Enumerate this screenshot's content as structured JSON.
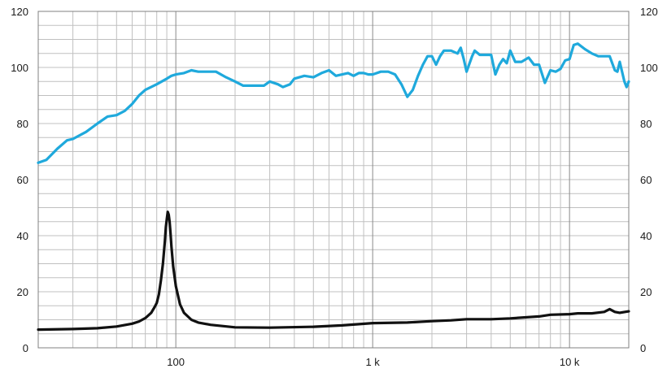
{
  "chart_data": {
    "type": "line",
    "title": "",
    "xlabel": "",
    "ylabel": "",
    "xscale": "log",
    "xlim": [
      20,
      20000
    ],
    "ylim": [
      0,
      120
    ],
    "grid": "on",
    "x_tick_labels": [
      {
        "value": 100,
        "label": "100"
      },
      {
        "value": 1000,
        "label": "1 k"
      },
      {
        "value": 10000,
        "label": "10 k"
      }
    ],
    "y_ticks": [
      0,
      20,
      40,
      60,
      80,
      100,
      120
    ],
    "series": [
      {
        "color": "#1fa9dc",
        "points": [
          [
            20,
            66
          ],
          [
            22,
            67
          ],
          [
            25,
            71
          ],
          [
            28,
            74
          ],
          [
            30,
            74.5
          ],
          [
            35,
            77
          ],
          [
            40,
            80
          ],
          [
            45,
            82.5
          ],
          [
            50,
            83
          ],
          [
            55,
            84.5
          ],
          [
            60,
            87
          ],
          [
            65,
            90
          ],
          [
            70,
            92
          ],
          [
            80,
            94
          ],
          [
            90,
            96
          ],
          [
            95,
            97
          ],
          [
            100,
            97.5
          ],
          [
            110,
            98
          ],
          [
            120,
            99
          ],
          [
            130,
            98.5
          ],
          [
            140,
            98.5
          ],
          [
            150,
            98.5
          ],
          [
            160,
            98.5
          ],
          [
            180,
            96.5
          ],
          [
            200,
            95
          ],
          [
            220,
            93.5
          ],
          [
            250,
            93.5
          ],
          [
            280,
            93.5
          ],
          [
            300,
            95
          ],
          [
            330,
            94
          ],
          [
            350,
            93
          ],
          [
            380,
            94
          ],
          [
            400,
            96
          ],
          [
            450,
            97
          ],
          [
            500,
            96.5
          ],
          [
            550,
            98
          ],
          [
            600,
            99
          ],
          [
            650,
            97
          ],
          [
            700,
            97.5
          ],
          [
            750,
            98
          ],
          [
            800,
            97
          ],
          [
            850,
            98
          ],
          [
            900,
            98
          ],
          [
            950,
            97.5
          ],
          [
            1000,
            97.5
          ],
          [
            1100,
            98.5
          ],
          [
            1200,
            98.5
          ],
          [
            1300,
            97.5
          ],
          [
            1400,
            94
          ],
          [
            1500,
            89.5
          ],
          [
            1600,
            92
          ],
          [
            1700,
            97
          ],
          [
            1800,
            101
          ],
          [
            1900,
            104
          ],
          [
            2000,
            104
          ],
          [
            2100,
            101
          ],
          [
            2200,
            104
          ],
          [
            2300,
            106
          ],
          [
            2500,
            106
          ],
          [
            2700,
            105
          ],
          [
            2800,
            107
          ],
          [
            2900,
            103
          ],
          [
            3000,
            98.5
          ],
          [
            3200,
            104
          ],
          [
            3300,
            106
          ],
          [
            3500,
            104.5
          ],
          [
            4000,
            104.5
          ],
          [
            4200,
            97.5
          ],
          [
            4400,
            101
          ],
          [
            4600,
            103
          ],
          [
            4800,
            101.5
          ],
          [
            5000,
            106
          ],
          [
            5300,
            102
          ],
          [
            5700,
            102
          ],
          [
            6200,
            103.5
          ],
          [
            6600,
            101
          ],
          [
            7000,
            101
          ],
          [
            7500,
            94.5
          ],
          [
            8000,
            99
          ],
          [
            8500,
            98.5
          ],
          [
            9000,
            99.5
          ],
          [
            9500,
            102.5
          ],
          [
            10000,
            103
          ],
          [
            10500,
            108
          ],
          [
            11000,
            108.5
          ],
          [
            12000,
            106.5
          ],
          [
            13000,
            105
          ],
          [
            14000,
            104
          ],
          [
            15000,
            104
          ],
          [
            16000,
            104
          ],
          [
            17000,
            99
          ],
          [
            17500,
            98.5
          ],
          [
            18000,
            102
          ],
          [
            19000,
            95
          ],
          [
            19500,
            93
          ],
          [
            20000,
            95
          ]
        ]
      },
      {
        "color": "#111111",
        "points": [
          [
            20,
            6.5
          ],
          [
            30,
            6.7
          ],
          [
            40,
            7
          ],
          [
            50,
            7.6
          ],
          [
            60,
            8.6
          ],
          [
            65,
            9.4
          ],
          [
            70,
            10.6
          ],
          [
            75,
            12.5
          ],
          [
            78,
            14.5
          ],
          [
            80,
            16
          ],
          [
            82,
            19
          ],
          [
            84,
            24
          ],
          [
            86,
            30
          ],
          [
            88,
            38
          ],
          [
            89,
            43
          ],
          [
            90,
            46
          ],
          [
            91,
            48.5
          ],
          [
            92,
            47.5
          ],
          [
            93,
            45
          ],
          [
            94,
            41
          ],
          [
            95,
            36
          ],
          [
            97,
            29
          ],
          [
            100,
            22
          ],
          [
            105,
            15.5
          ],
          [
            110,
            12.5
          ],
          [
            120,
            10
          ],
          [
            130,
            9
          ],
          [
            150,
            8.2
          ],
          [
            200,
            7.3
          ],
          [
            300,
            7.2
          ],
          [
            500,
            7.5
          ],
          [
            700,
            8
          ],
          [
            1000,
            8.8
          ],
          [
            1500,
            9
          ],
          [
            2000,
            9.5
          ],
          [
            2500,
            9.8
          ],
          [
            3000,
            10.2
          ],
          [
            4000,
            10.2
          ],
          [
            5000,
            10.5
          ],
          [
            7000,
            11.2
          ],
          [
            8000,
            11.8
          ],
          [
            10000,
            12
          ],
          [
            11000,
            12.3
          ],
          [
            13000,
            12.3
          ],
          [
            15000,
            12.8
          ],
          [
            16000,
            13.8
          ],
          [
            17000,
            12.8
          ],
          [
            18000,
            12.5
          ],
          [
            20000,
            13
          ]
        ]
      }
    ]
  }
}
